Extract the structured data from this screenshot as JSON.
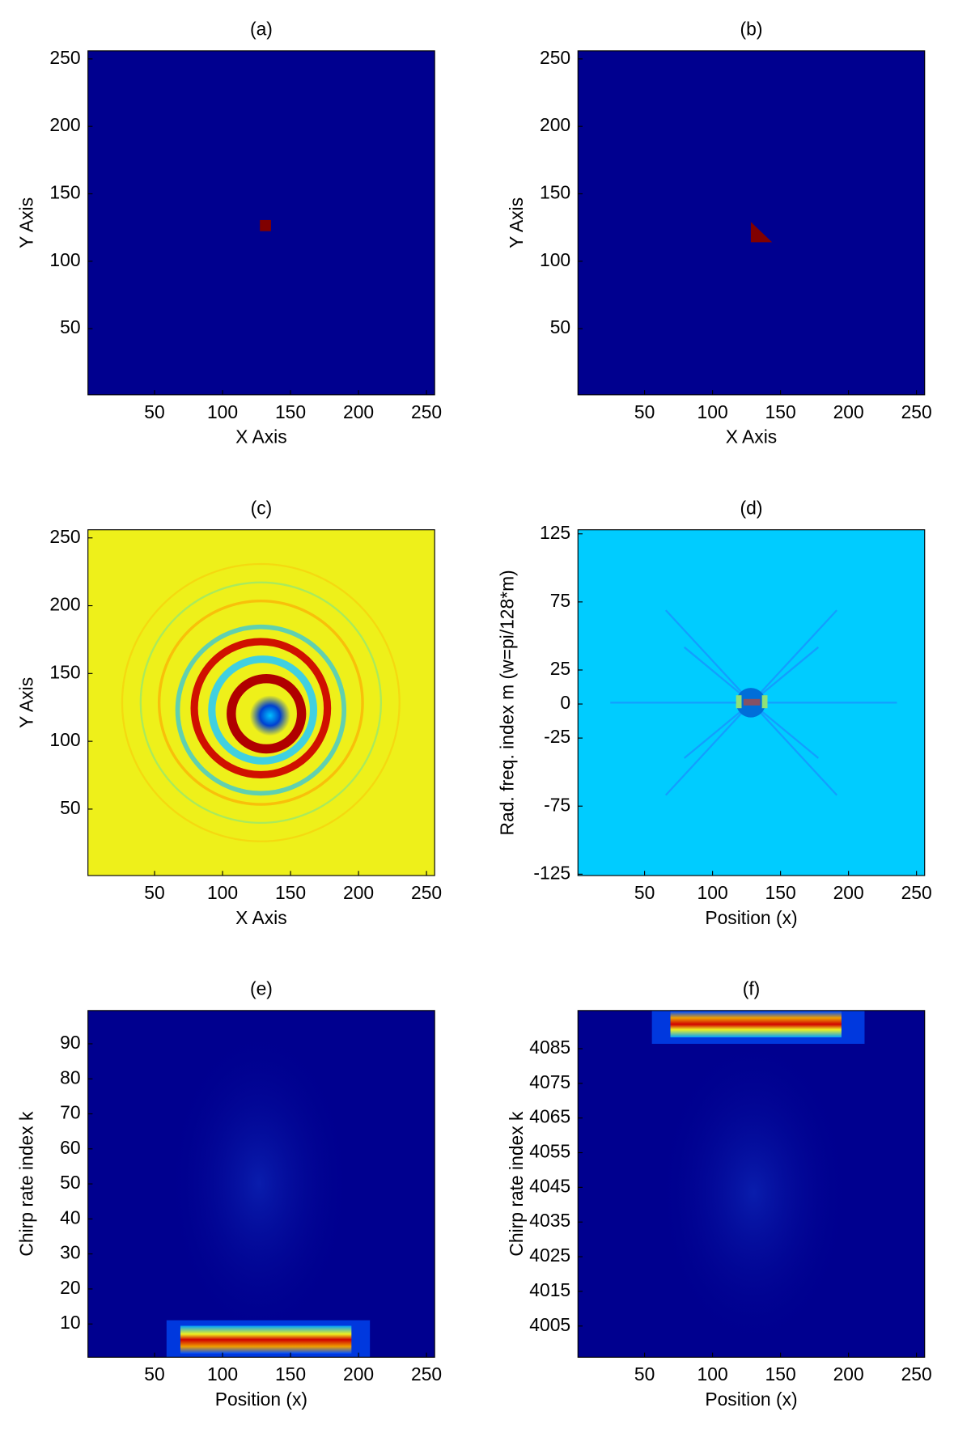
{
  "chart_data": [
    {
      "type": "heatmap",
      "title": "(a)",
      "x_label": "X Axis",
      "y_label": "Y Axis",
      "xlim": [
        1,
        256
      ],
      "ylim": [
        1,
        256
      ],
      "xticks": [
        50,
        100,
        150,
        200,
        250
      ],
      "yticks": [
        50,
        100,
        150,
        200,
        250
      ],
      "background_color": "#00008f"
    },
    {
      "type": "heatmap",
      "title": "(b)",
      "x_label": "X Axis",
      "y_label": "Y Axis",
      "xlim": [
        1,
        256
      ],
      "ylim": [
        1,
        256
      ],
      "xticks": [
        50,
        100,
        150,
        200,
        250
      ],
      "yticks": [
        50,
        100,
        150,
        200,
        250
      ],
      "background_color": "#00008f"
    },
    {
      "type": "heatmap",
      "title": "(c)",
      "x_label": "X Axis",
      "y_label": "Y Axis",
      "xlim": [
        1,
        256
      ],
      "ylim": [
        1,
        256
      ],
      "xticks": [
        50,
        100,
        150,
        200,
        250
      ],
      "yticks": [
        50,
        100,
        150,
        200,
        250
      ],
      "background_color": "#eef01a"
    },
    {
      "type": "heatmap",
      "title": "(d)",
      "x_label": "Position (x)",
      "y_label": "Rad. freq. index m (w=pi/128*m)",
      "xlim": [
        1,
        256
      ],
      "ylim": [
        -126,
        128
      ],
      "xticks": [
        50,
        100,
        150,
        200,
        250
      ],
      "yticks": [
        125,
        75,
        25,
        0,
        -25,
        -75,
        -125
      ],
      "background_color": "#00ccff"
    },
    {
      "type": "heatmap",
      "title": "(e)",
      "x_label": "Position (x)",
      "y_label": "Chirp rate index k",
      "xlim": [
        1,
        256
      ],
      "ylim": [
        0.5,
        99.5
      ],
      "xticks": [
        50,
        100,
        150,
        200,
        250
      ],
      "yticks": [
        10,
        20,
        30,
        40,
        50,
        60,
        70,
        80,
        90
      ],
      "background_color": "#00008f"
    },
    {
      "type": "heatmap",
      "title": "(f)",
      "x_label": "Position (x)",
      "y_label": "Chirp rate index k",
      "xlim": [
        1,
        256
      ],
      "ylim": [
        3996,
        4096
      ],
      "xticks": [
        50,
        100,
        150,
        200,
        250
      ],
      "yticks": [
        4005,
        4015,
        4025,
        4035,
        4045,
        4055,
        4065,
        4075,
        4085
      ],
      "background_color": "#00008f"
    }
  ]
}
